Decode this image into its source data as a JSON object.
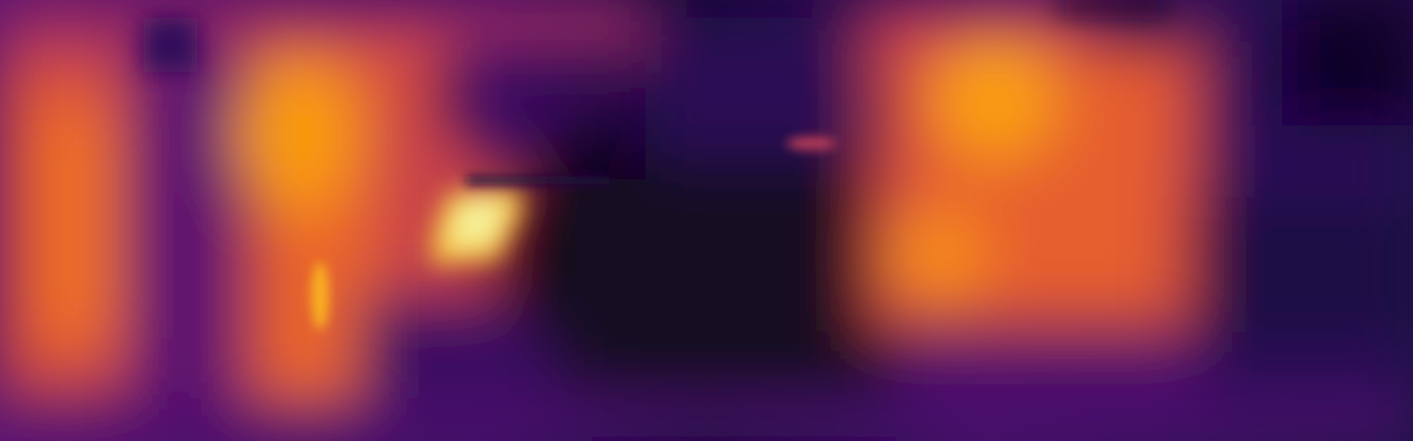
{
  "image": {
    "kind": "depth-map",
    "colormap": "inferno",
    "palette": {
      "black": "#000004",
      "deep_indigo": "#1b0c41",
      "purple": "#4a0c6b",
      "violet": "#781c6d",
      "magenta": "#a52c60",
      "red_orange": "#cf4446",
      "orange": "#ed6925",
      "amber": "#fb9b06",
      "yellow": "#f7d13d",
      "pale_yellow": "#fcffa4"
    },
    "regions": [
      "left-orange-column",
      "center-left-bright-highlight",
      "center-dark-void",
      "right-orange-area",
      "far-right-dark-purple"
    ]
  }
}
